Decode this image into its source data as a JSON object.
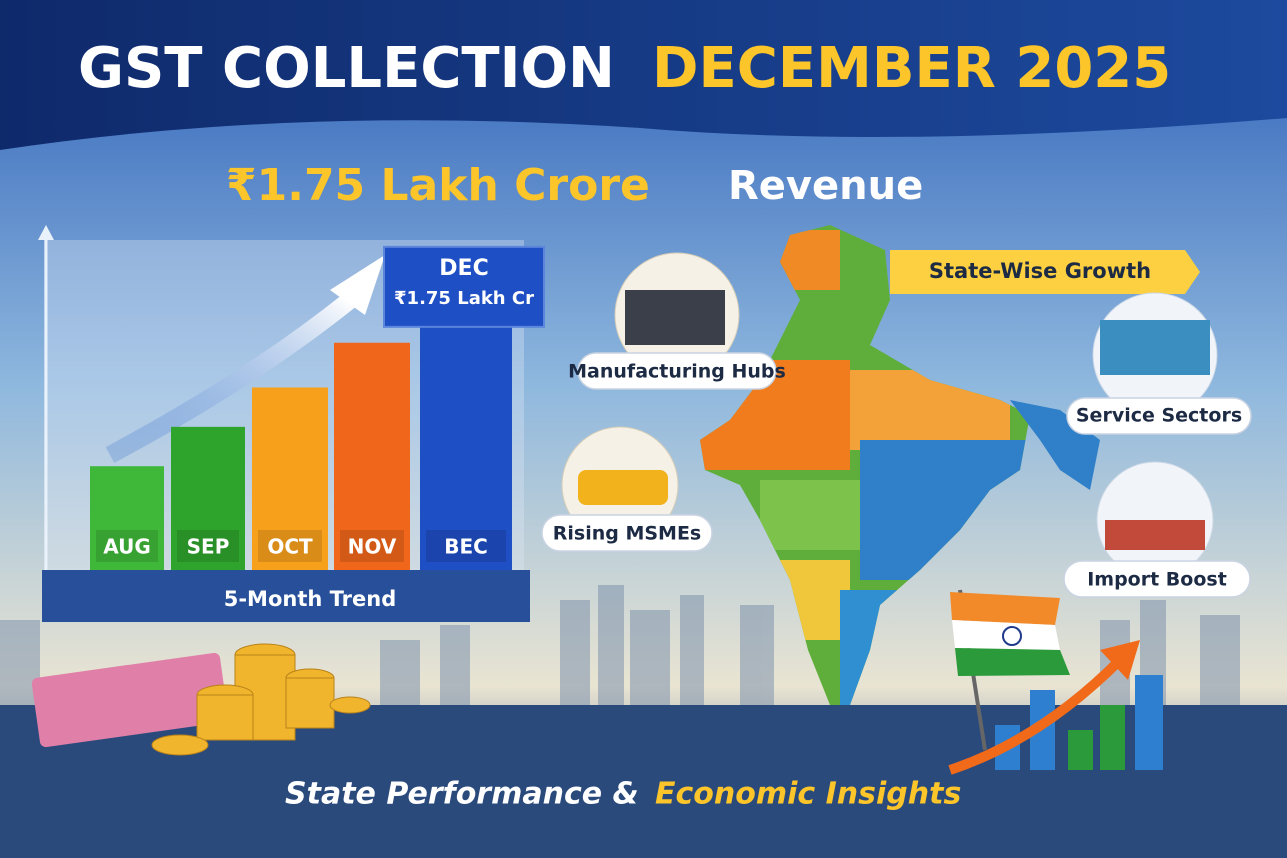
{
  "header": {
    "title_white": "GST COLLECTION",
    "title_yellow": "DECEMBER 2025"
  },
  "headline": {
    "amount": "₹1.75 Lakh Crore",
    "word": "Revenue"
  },
  "chart_data": {
    "type": "bar",
    "caption": "5-Month Trend",
    "categories": [
      "AUG",
      "SEP",
      "OCT",
      "NOV",
      "BEC"
    ],
    "values": [
      0.58,
      0.8,
      1.02,
      1.27,
      1.75
    ],
    "value_labels": [
      null,
      null,
      null,
      null,
      "₹1.75 Lakh Cr"
    ],
    "annotation": "DEC",
    "colors": [
      "#3fb83a",
      "#2ea42d",
      "#f7a01c",
      "#f0661a",
      "#1f4fc4"
    ],
    "ylim": [
      0,
      1.9
    ]
  },
  "map": {
    "banner": "State-Wise Growth",
    "callouts": [
      "Manufacturing Hubs",
      "Service Sectors",
      "Rising MSMEs",
      "Import Boost"
    ]
  },
  "footer": {
    "white": "State Performance &",
    "yellow": "Economic Insights"
  }
}
